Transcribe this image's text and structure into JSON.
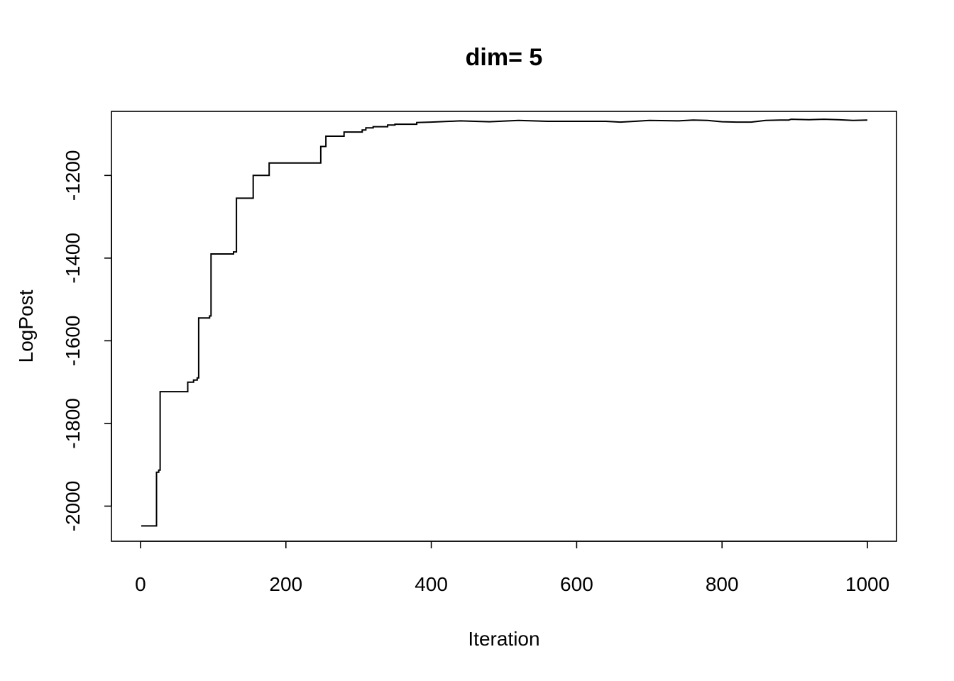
{
  "chart_data": {
    "type": "line",
    "title": "dim= 5",
    "xlabel": "Iteration",
    "ylabel": "LogPost",
    "xlim": [
      -40,
      1040
    ],
    "ylim": [
      -2085,
      -1045
    ],
    "x_ticks": [
      0,
      200,
      400,
      600,
      800,
      1000
    ],
    "y_ticks": [
      -2000,
      -1800,
      -1600,
      -1400,
      -1200
    ],
    "x_tick_labels": [
      "0",
      "200",
      "400",
      "600",
      "800",
      "1000"
    ],
    "y_tick_labels": [
      "-2000",
      "-1800",
      "-1600",
      "-1400",
      "-1200"
    ],
    "grid": false,
    "legend": "none",
    "line_color": "#000000",
    "series": [
      {
        "x": [
          1,
          22,
          22,
          25,
          25,
          27,
          27,
          65,
          65,
          73,
          73,
          78,
          78,
          80,
          80,
          95,
          95,
          97,
          97,
          128,
          128,
          132,
          132,
          155,
          155,
          177,
          177,
          248,
          248,
          255,
          255,
          280,
          280,
          305,
          305,
          310,
          310,
          320,
          320,
          340,
          340,
          350,
          350,
          380,
          380,
          400,
          440,
          480,
          520,
          560,
          600,
          640,
          660,
          680,
          700,
          740,
          760,
          780,
          800,
          820,
          840,
          860,
          880,
          892,
          895,
          920,
          940,
          960,
          980,
          1000
        ],
        "y": [
          -2048,
          -2048,
          -1918,
          -1918,
          -1913,
          -1913,
          -1723,
          -1723,
          -1700,
          -1700,
          -1695,
          -1695,
          -1690,
          -1690,
          -1545,
          -1545,
          -1540,
          -1540,
          -1390,
          -1390,
          -1385,
          -1385,
          -1255,
          -1255,
          -1200,
          -1200,
          -1170,
          -1170,
          -1130,
          -1130,
          -1105,
          -1105,
          -1095,
          -1095,
          -1090,
          -1090,
          -1085,
          -1085,
          -1082,
          -1082,
          -1078,
          -1078,
          -1076,
          -1076,
          -1072,
          -1071,
          -1068,
          -1070,
          -1067,
          -1069,
          -1069,
          -1069,
          -1071,
          -1069,
          -1067,
          -1068,
          -1066,
          -1067,
          -1070,
          -1071,
          -1071,
          -1067,
          -1066,
          -1066,
          -1064,
          -1065,
          -1064,
          -1065,
          -1067,
          -1066
        ]
      }
    ]
  }
}
